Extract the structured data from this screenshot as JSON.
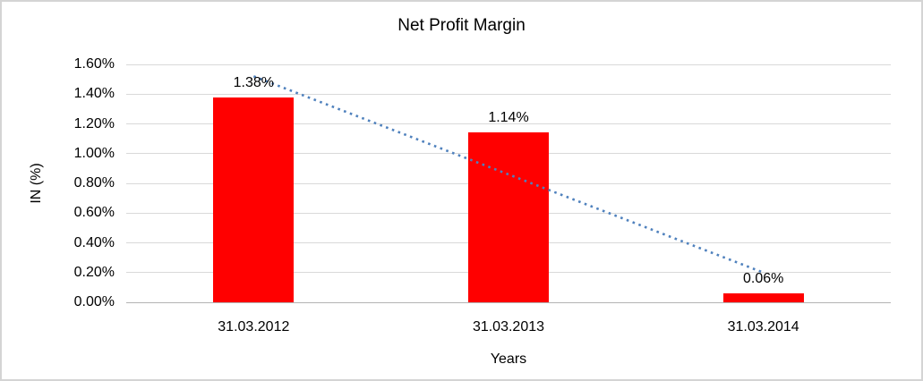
{
  "chart_data": {
    "type": "bar",
    "title": "Net Profit Margin",
    "xlabel": "Years",
    "ylabel": "IN (%)",
    "categories": [
      "31.03.2012",
      "31.03.2013",
      "31.03.2014"
    ],
    "values": [
      1.38,
      1.14,
      0.06
    ],
    "data_labels": [
      "1.38%",
      "1.14%",
      "0.06%"
    ],
    "y_ticks": [
      "1.60%",
      "1.40%",
      "1.20%",
      "1.00%",
      "0.80%",
      "0.60%",
      "0.40%",
      "0.20%",
      "0.00%"
    ],
    "ylim": [
      0,
      1.6
    ],
    "y_tick_step": 0.2,
    "grid": true,
    "legend": "none",
    "bar_color": "#ff0000",
    "trendline": {
      "type": "linear",
      "series": "Net Profit Margin",
      "style": "dotted",
      "color": "#4f81bd",
      "start_value": 1.52,
      "end_value": 0.2
    }
  }
}
